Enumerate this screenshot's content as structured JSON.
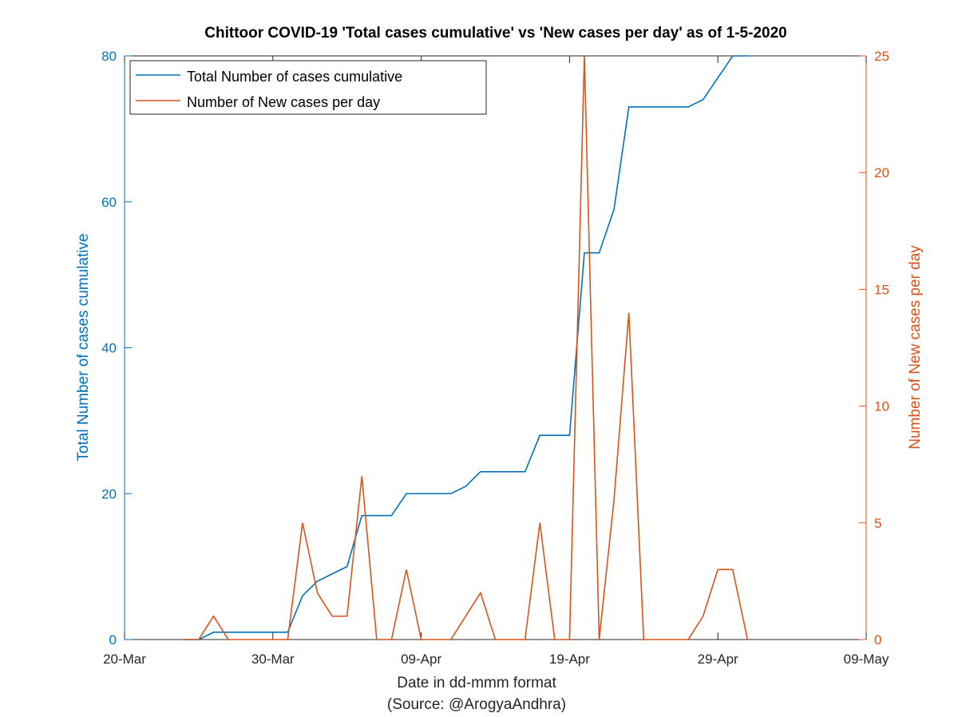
{
  "chart_data": {
    "type": "line",
    "title": "Chittoor COVID-19 'Total cases cumulative' vs 'New cases per day' as of 1-5-2020",
    "xlabel": "Date in dd-mmm format",
    "xlabel_source": "(Source: @ArogyaAndhra)",
    "ylabel_left": "Total Number of cases cumulative",
    "ylabel_right": "Number of New cases per day",
    "x_range": [
      "2020-03-20",
      "2020-05-09"
    ],
    "x_ticks": [
      {
        "date": "2020-03-20",
        "label": "20-Mar"
      },
      {
        "date": "2020-03-30",
        "label": "30-Mar"
      },
      {
        "date": "2020-04-09",
        "label": "09-Apr"
      },
      {
        "date": "2020-04-19",
        "label": "19-Apr"
      },
      {
        "date": "2020-04-29",
        "label": "29-Apr"
      },
      {
        "date": "2020-05-09",
        "label": "09-May"
      }
    ],
    "ylim_left": [
      0,
      80
    ],
    "y_ticks_left": [
      "0",
      "20",
      "40",
      "60",
      "80"
    ],
    "ylim_right": [
      0,
      25
    ],
    "y_ticks_right": [
      "0",
      "5",
      "10",
      "15",
      "20",
      "25"
    ],
    "grid": false,
    "legend_position": "top-left",
    "colors": {
      "left": "#0072BD",
      "right": "#D95319"
    },
    "series": [
      {
        "name": "Total Number of cases cumulative",
        "axis": "left",
        "points": [
          [
            "2020-03-24",
            0
          ],
          [
            "2020-03-25",
            0
          ],
          [
            "2020-03-26",
            1
          ],
          [
            "2020-03-27",
            1
          ],
          [
            "2020-03-28",
            1
          ],
          [
            "2020-03-29",
            1
          ],
          [
            "2020-03-30",
            1
          ],
          [
            "2020-03-31",
            1
          ],
          [
            "2020-04-01",
            6
          ],
          [
            "2020-04-02",
            8
          ],
          [
            "2020-04-03",
            9
          ],
          [
            "2020-04-04",
            10
          ],
          [
            "2020-04-05",
            17
          ],
          [
            "2020-04-06",
            17
          ],
          [
            "2020-04-07",
            17
          ],
          [
            "2020-04-08",
            20
          ],
          [
            "2020-04-09",
            20
          ],
          [
            "2020-04-10",
            20
          ],
          [
            "2020-04-11",
            20
          ],
          [
            "2020-04-12",
            21
          ],
          [
            "2020-04-13",
            23
          ],
          [
            "2020-04-14",
            23
          ],
          [
            "2020-04-15",
            23
          ],
          [
            "2020-04-16",
            23
          ],
          [
            "2020-04-17",
            28
          ],
          [
            "2020-04-18",
            28
          ],
          [
            "2020-04-19",
            28
          ],
          [
            "2020-04-20",
            53
          ],
          [
            "2020-04-21",
            53
          ],
          [
            "2020-04-22",
            59
          ],
          [
            "2020-04-23",
            73
          ],
          [
            "2020-04-24",
            73
          ],
          [
            "2020-04-25",
            73
          ],
          [
            "2020-04-26",
            73
          ],
          [
            "2020-04-27",
            73
          ],
          [
            "2020-04-28",
            74
          ],
          [
            "2020-04-29",
            77
          ],
          [
            "2020-04-30",
            80
          ],
          [
            "2020-05-01",
            80
          ]
        ]
      },
      {
        "name": "Number of New cases per day",
        "axis": "right",
        "points": [
          [
            "2020-03-24",
            0
          ],
          [
            "2020-03-25",
            0
          ],
          [
            "2020-03-26",
            1
          ],
          [
            "2020-03-27",
            0
          ],
          [
            "2020-03-28",
            0
          ],
          [
            "2020-03-29",
            0
          ],
          [
            "2020-03-30",
            0
          ],
          [
            "2020-03-31",
            0
          ],
          [
            "2020-04-01",
            5
          ],
          [
            "2020-04-02",
            2
          ],
          [
            "2020-04-03",
            1
          ],
          [
            "2020-04-04",
            1
          ],
          [
            "2020-04-05",
            7
          ],
          [
            "2020-04-06",
            0
          ],
          [
            "2020-04-07",
            0
          ],
          [
            "2020-04-08",
            3
          ],
          [
            "2020-04-09",
            0
          ],
          [
            "2020-04-10",
            0
          ],
          [
            "2020-04-11",
            0
          ],
          [
            "2020-04-12",
            1
          ],
          [
            "2020-04-13",
            2
          ],
          [
            "2020-04-14",
            0
          ],
          [
            "2020-04-15",
            0
          ],
          [
            "2020-04-16",
            0
          ],
          [
            "2020-04-17",
            5
          ],
          [
            "2020-04-18",
            0
          ],
          [
            "2020-04-19",
            0
          ],
          [
            "2020-04-20",
            25
          ],
          [
            "2020-04-21",
            0
          ],
          [
            "2020-04-22",
            6
          ],
          [
            "2020-04-23",
            14
          ],
          [
            "2020-04-24",
            0
          ],
          [
            "2020-04-25",
            0
          ],
          [
            "2020-04-26",
            0
          ],
          [
            "2020-04-27",
            0
          ],
          [
            "2020-04-28",
            1
          ],
          [
            "2020-04-29",
            3
          ],
          [
            "2020-04-30",
            3
          ],
          [
            "2020-05-01",
            0
          ]
        ]
      }
    ]
  }
}
